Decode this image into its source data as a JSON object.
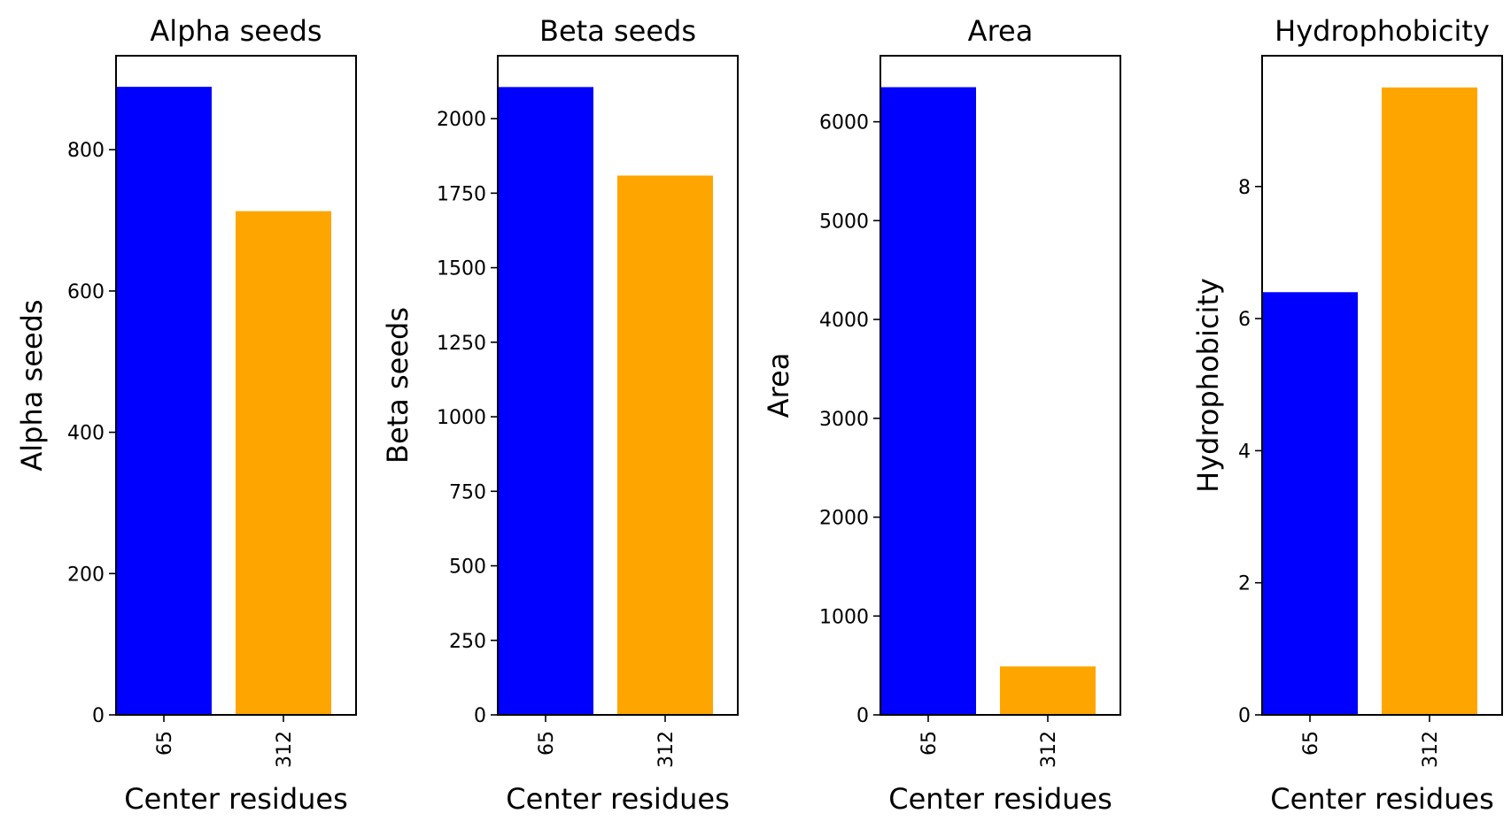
{
  "chart_data": [
    {
      "type": "bar",
      "title": "Alpha seeds",
      "xlabel": "Center residues",
      "ylabel": "Alpha seeds",
      "categories": [
        "65",
        "312"
      ],
      "values": [
        889,
        713
      ],
      "ylim": [
        0,
        933
      ],
      "yticks": [
        0,
        200,
        400,
        600,
        800
      ],
      "colors": [
        "#0000ff",
        "#ffa500"
      ],
      "grid": false
    },
    {
      "type": "bar",
      "title": "Beta seeds",
      "xlabel": "Center residues",
      "ylabel": "Beta seeds",
      "categories": [
        "65",
        "312"
      ],
      "values": [
        2106,
        1809
      ],
      "ylim": [
        0,
        2211
      ],
      "yticks": [
        0,
        250,
        500,
        750,
        1000,
        1250,
        1500,
        1750,
        2000
      ],
      "colors": [
        "#0000ff",
        "#ffa500"
      ],
      "grid": false
    },
    {
      "type": "bar",
      "title": "Area",
      "xlabel": "Center residues",
      "ylabel": "Area",
      "categories": [
        "65",
        "312"
      ],
      "values": [
        6350,
        490
      ],
      "ylim": [
        0,
        6668
      ],
      "yticks": [
        0,
        1000,
        2000,
        3000,
        4000,
        5000,
        6000
      ],
      "colors": [
        "#0000ff",
        "#ffa500"
      ],
      "grid": false
    },
    {
      "type": "bar",
      "title": "Hydrophobicity",
      "xlabel": "Center residues",
      "ylabel": "Hydrophobicity",
      "categories": [
        "65",
        "312"
      ],
      "values": [
        6.4,
        9.5
      ],
      "ylim": [
        0,
        9.98
      ],
      "yticks": [
        0,
        2,
        4,
        6,
        8
      ],
      "colors": [
        "#0000ff",
        "#ffa500"
      ],
      "grid": false
    }
  ]
}
